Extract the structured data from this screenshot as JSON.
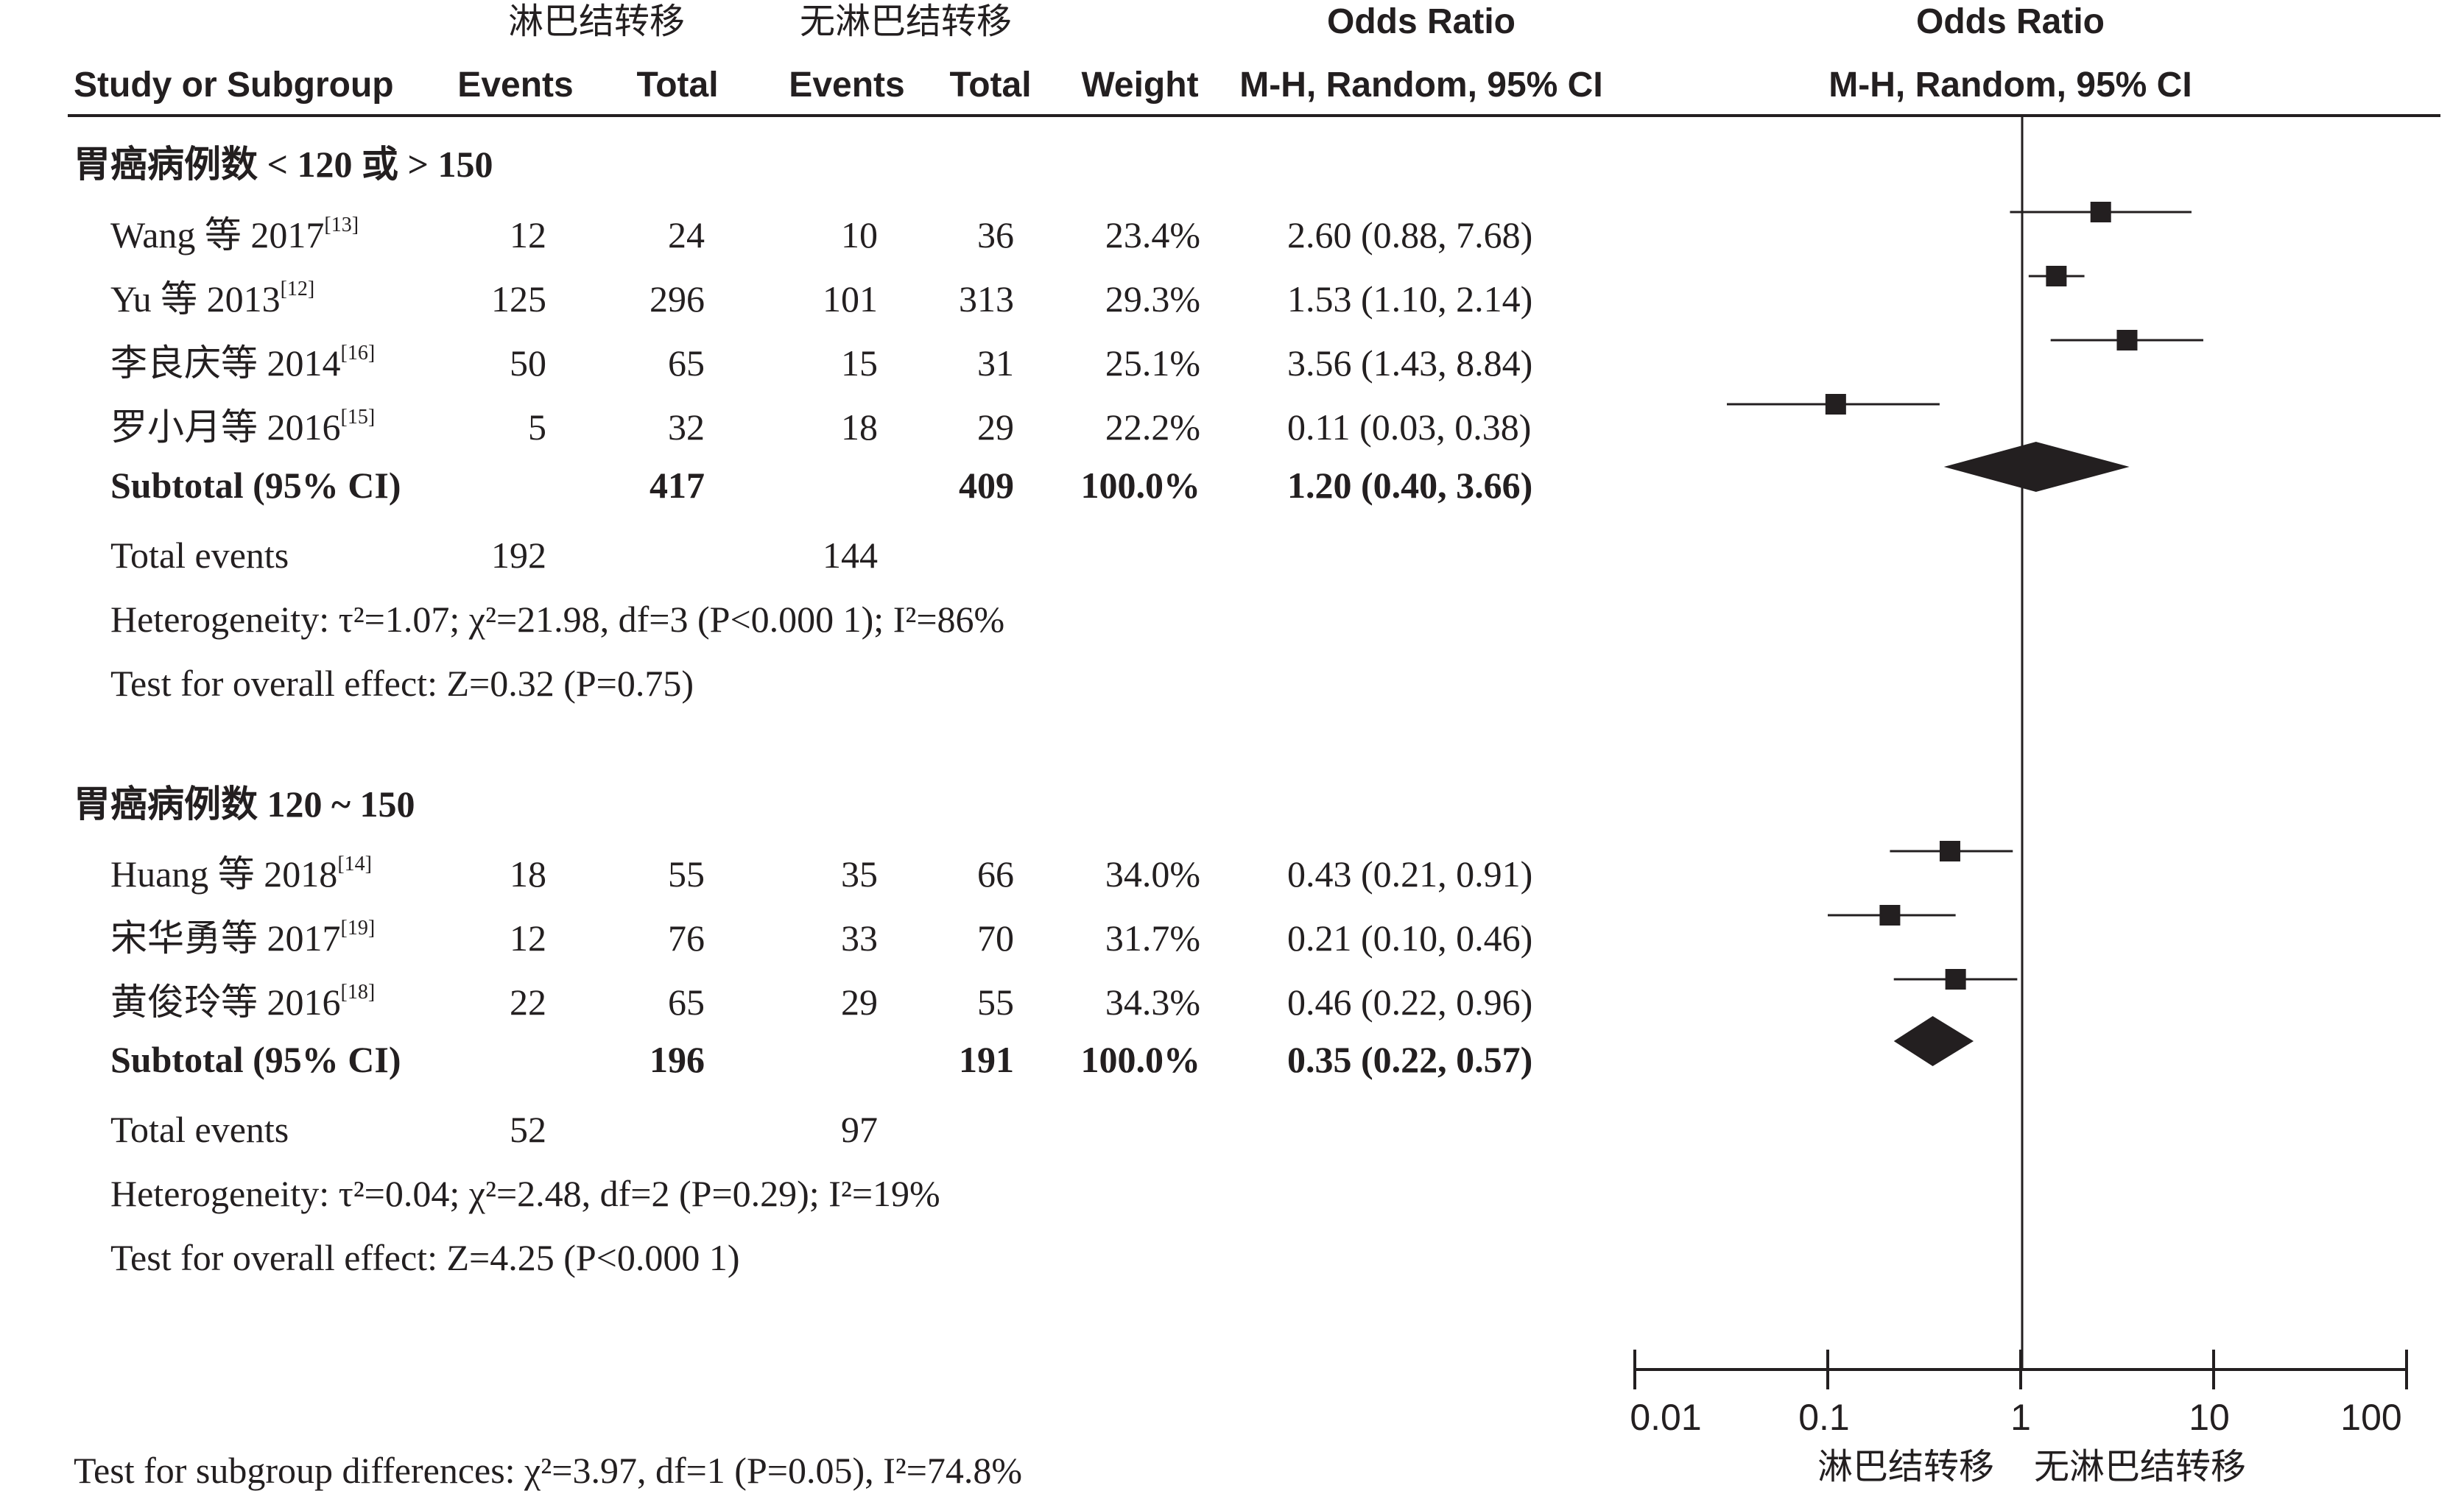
{
  "header": {
    "exp_group": "淋巴结转移",
    "ctrl_group": "无淋巴结转移",
    "or_title": "Odds Ratio",
    "or_method": "M-H, Random, 95% CI",
    "plot_title": "Odds Ratio",
    "plot_method": "M-H, Random, 95% CI",
    "col_study": "Study or Subgroup",
    "col_exp_events": "Events",
    "col_exp_total": "Total",
    "col_ctrl_events": "Events",
    "col_ctrl_total": "Total",
    "col_weight": "Weight"
  },
  "subgroups": [
    {
      "title_cn": "胃癌病例数",
      "title_rest": " < 120 或 > 150",
      "studies": [
        {
          "name": "Wang 等 2017",
          "ref": "[13]",
          "exp_events": "12",
          "exp_total": "24",
          "ctrl_events": "10",
          "ctrl_total": "36",
          "weight": "23.4%",
          "ci_text": "2.60 (0.88, 7.68)"
        },
        {
          "name": "Yu 等 2013",
          "ref": "[12]",
          "exp_events": "125",
          "exp_total": "296",
          "ctrl_events": "101",
          "ctrl_total": "313",
          "weight": "29.3%",
          "ci_text": "1.53 (1.10, 2.14)"
        },
        {
          "name": "李良庆等 2014",
          "ref": "[16]",
          "exp_events": "50",
          "exp_total": "65",
          "ctrl_events": "15",
          "ctrl_total": "31",
          "weight": "25.1%",
          "ci_text": "3.56 (1.43, 8.84)"
        },
        {
          "name": "罗小月等 2016",
          "ref": "[15]",
          "exp_events": "5",
          "exp_total": "32",
          "ctrl_events": "18",
          "ctrl_total": "29",
          "weight": "22.2%",
          "ci_text": "0.11 (0.03, 0.38)"
        }
      ],
      "subtotal": {
        "label": "Subtotal (95% CI)",
        "exp_total": "417",
        "ctrl_total": "409",
        "weight": "100.0%",
        "ci_text": "1.20 (0.40, 3.66)"
      },
      "total_events": {
        "label": "Total events",
        "exp": "192",
        "ctrl": "144"
      },
      "heterogeneity": "Heterogeneity: τ²=1.07; χ²=21.98, df=3 (P<0.000 1); I²=86%",
      "overall": "Test for overall effect: Z=0.32 (P=0.75)"
    },
    {
      "title_cn": "胃癌病例数",
      "title_rest": " 120 ~ 150",
      "studies": [
        {
          "name": "Huang 等 2018",
          "ref": "[14]",
          "exp_events": "18",
          "exp_total": "55",
          "ctrl_events": "35",
          "ctrl_total": "66",
          "weight": "34.0%",
          "ci_text": "0.43 (0.21, 0.91)"
        },
        {
          "name": "宋华勇等 2017",
          "ref": "[19]",
          "exp_events": "12",
          "exp_total": "76",
          "ctrl_events": "33",
          "ctrl_total": "70",
          "weight": "31.7%",
          "ci_text": "0.21 (0.10, 0.46)"
        },
        {
          "name": "黄俊玲等 2016",
          "ref": "[18]",
          "exp_events": "22",
          "exp_total": "65",
          "ctrl_events": "29",
          "ctrl_total": "55",
          "weight": "34.3%",
          "ci_text": "0.46 (0.22, 0.96)"
        }
      ],
      "subtotal": {
        "label": "Subtotal (95% CI)",
        "exp_total": "196",
        "ctrl_total": "191",
        "weight": "100.0%",
        "ci_text": "0.35 (0.22, 0.57)"
      },
      "total_events": {
        "label": "Total events",
        "exp": "52",
        "ctrl": "97"
      },
      "heterogeneity": "Heterogeneity: τ²=0.04; χ²=2.48, df=2 (P=0.29); I²=19%",
      "overall": "Test for overall effect: Z=4.25 (P<0.000 1)"
    }
  ],
  "subgroup_diff": "Test for subgroup differences: χ²=3.97, df=1 (P=0.05), I²=74.8%",
  "axis": {
    "ticks": [
      "0.01",
      "0.1",
      "1",
      "10",
      "100"
    ],
    "favours_left": "淋巴结转移",
    "favours_right": "无淋巴结转移"
  },
  "chart_data": {
    "type": "forest",
    "scale": "log",
    "xlim": [
      0.01,
      100
    ],
    "null_line": 1,
    "ticks": [
      0.01,
      0.1,
      1,
      10,
      100
    ],
    "studies": [
      {
        "group": 0,
        "or": 2.6,
        "lo": 0.88,
        "hi": 7.68,
        "weight": 23.4
      },
      {
        "group": 0,
        "or": 1.53,
        "lo": 1.1,
        "hi": 2.14,
        "weight": 29.3
      },
      {
        "group": 0,
        "or": 3.56,
        "lo": 1.43,
        "hi": 8.84,
        "weight": 25.1
      },
      {
        "group": 0,
        "or": 0.11,
        "lo": 0.03,
        "hi": 0.38,
        "weight": 22.2
      },
      {
        "group": 1,
        "or": 0.43,
        "lo": 0.21,
        "hi": 0.91,
        "weight": 34.0
      },
      {
        "group": 1,
        "or": 0.21,
        "lo": 0.1,
        "hi": 0.46,
        "weight": 31.7
      },
      {
        "group": 1,
        "or": 0.46,
        "lo": 0.22,
        "hi": 0.96,
        "weight": 34.3
      }
    ],
    "subtotals": [
      {
        "group": 0,
        "or": 1.2,
        "lo": 0.4,
        "hi": 3.66
      },
      {
        "group": 1,
        "or": 0.35,
        "lo": 0.22,
        "hi": 0.57
      }
    ]
  }
}
